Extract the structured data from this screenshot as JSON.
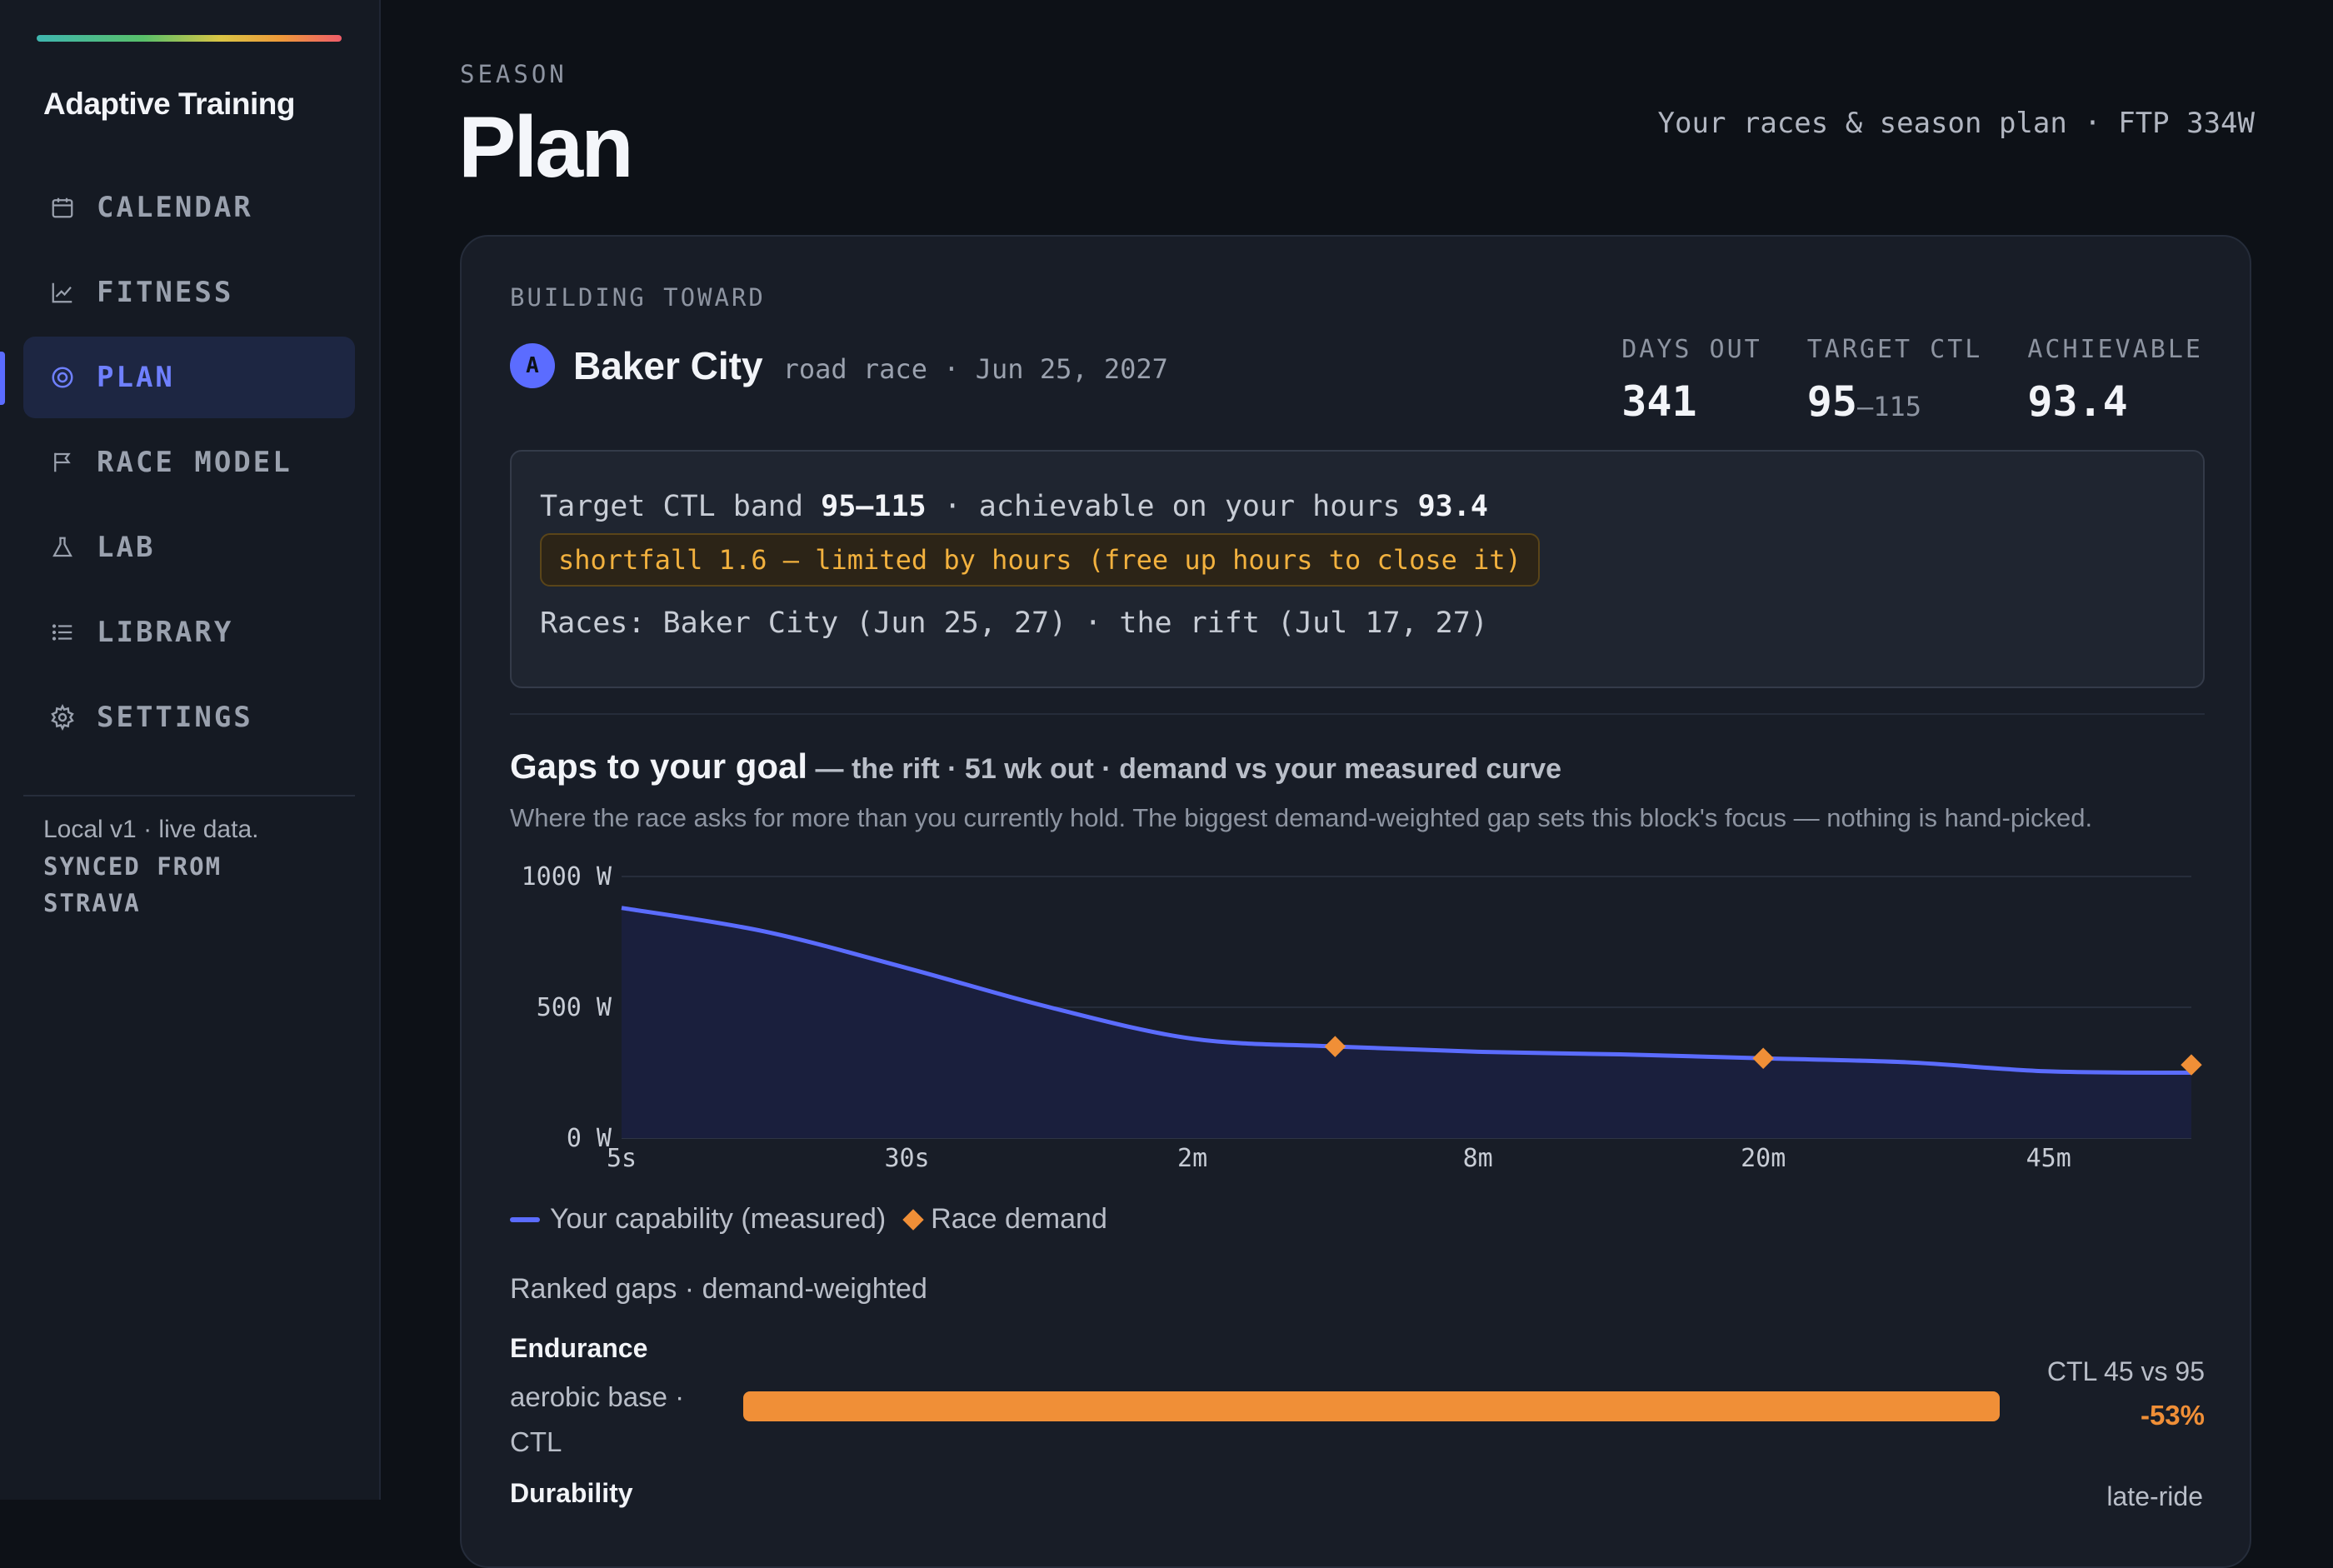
{
  "sidebar": {
    "brand": "Adaptive Training",
    "items": [
      {
        "label": "CALENDAR",
        "icon": "calendar-icon"
      },
      {
        "label": "FITNESS",
        "icon": "chart-line-icon"
      },
      {
        "label": "PLAN",
        "icon": "target-icon",
        "active": true
      },
      {
        "label": "RACE MODEL",
        "icon": "flag-icon"
      },
      {
        "label": "LAB",
        "icon": "flask-icon"
      },
      {
        "label": "LIBRARY",
        "icon": "list-icon"
      },
      {
        "label": "SETTINGS",
        "icon": "gear-icon"
      }
    ],
    "footer_line1": "Local v1 · live data.",
    "footer_sync_1": "SYNCED FROM",
    "footer_sync_2": "STRAVA"
  },
  "header": {
    "eyebrow": "SEASON",
    "title": "Plan",
    "subtitle": "Your races & season plan · FTP 334W"
  },
  "card": {
    "eyebrow": "BUILDING TOWARD",
    "race": {
      "priority": "A",
      "name": "Baker City",
      "meta": "road race · Jun 25, 2027"
    },
    "stats": {
      "days_out_label": "DAYS OUT",
      "days_out": "341",
      "target_ctl_label": "TARGET CTL",
      "target_ctl": "95",
      "target_ctl_range": "–115",
      "achievable_label": "ACHIEVABLE",
      "achievable": "93.4"
    },
    "info": {
      "l1_prefix": "Target CTL band ",
      "l1_band": "95–115",
      "l1_mid": " · achievable on your hours ",
      "l1_value": "93.4",
      "shortfall": "shortfall 1.6 — limited by hours (free up hours to close it)",
      "races": "Races: Baker City (Jun 25, 27) · the rift (Jul 17, 27)"
    },
    "gaps": {
      "title": "Gaps to your goal",
      "subtitle": " — the rift · 51 wk out · demand vs your measured curve",
      "description": "Where the race asks for more than you currently hold. The biggest demand-weighted gap sets this block's focus — nothing is hand-picked.",
      "legend_capability": "Your capability (measured)",
      "legend_demand": "Race demand",
      "ranked_label": "Ranked gaps · demand-weighted",
      "rows": [
        {
          "name": "Endurance",
          "desc": "aerobic base · CTL",
          "vs": "CTL 45 vs 95",
          "pct": "-53%",
          "fraction": 0.53
        },
        {
          "name": "Durability",
          "vs": "late-ride"
        }
      ]
    }
  },
  "colors": {
    "accent": "#5b6cff",
    "demand": "#f08f37",
    "warning": "#f2b13e"
  },
  "chart_data": {
    "type": "line",
    "x_ticks": [
      "5s",
      "30s",
      "2m",
      "8m",
      "20m",
      "45m"
    ],
    "y_ticks": [
      "1000 W",
      "500 W",
      "0 W"
    ],
    "ylim": [
      0,
      1000
    ],
    "series": [
      {
        "name": "Your capability (measured)",
        "x_pos": [
          0,
          0.5,
          1,
          1.5,
          2,
          2.5,
          3,
          3.5,
          4,
          4.5,
          5,
          5.5
        ],
        "values": [
          880,
          790,
          650,
          500,
          380,
          350,
          330,
          320,
          305,
          290,
          255,
          250
        ]
      },
      {
        "name": "Race demand",
        "x_pos": [
          2.5,
          4,
          5.5
        ],
        "values": [
          350,
          305,
          280
        ]
      }
    ]
  }
}
